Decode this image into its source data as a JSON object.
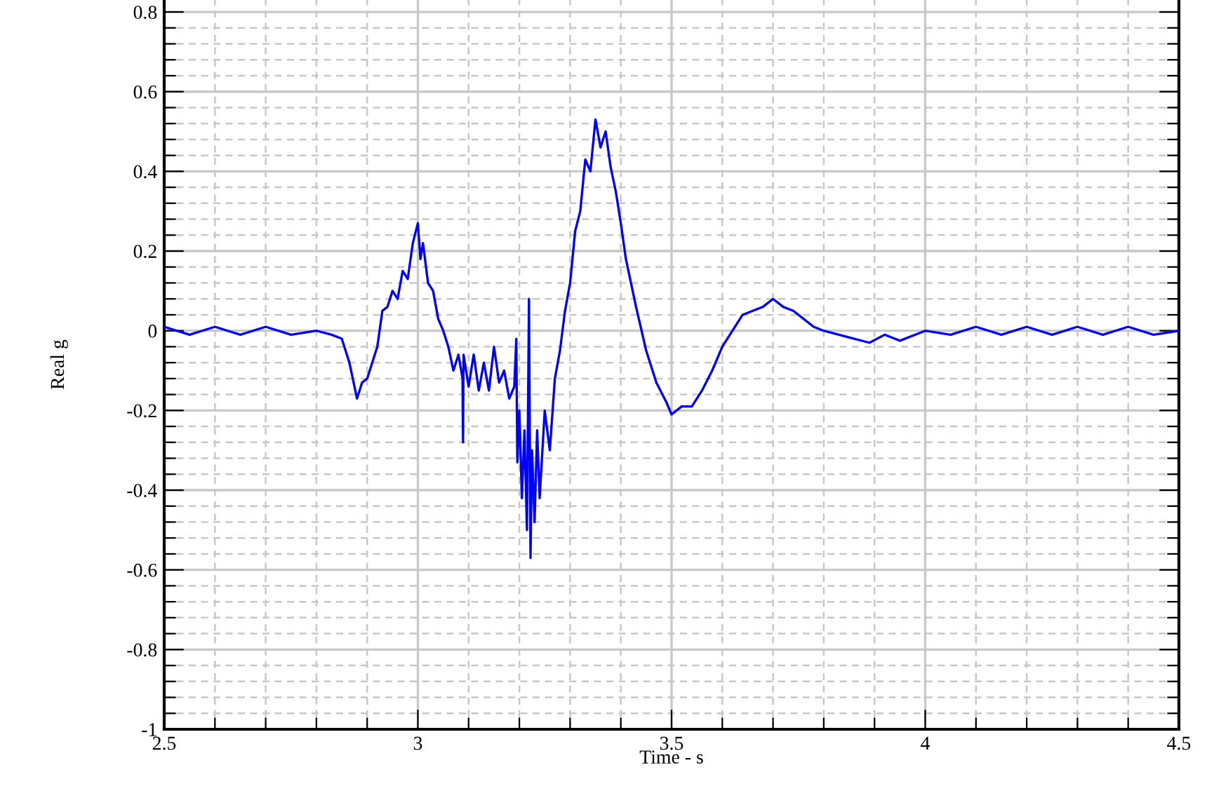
{
  "chart_data": {
    "type": "line",
    "xlabel": "Time - s",
    "ylabel": "Real g",
    "xlim": [
      2.5,
      4.5
    ],
    "ylim": [
      -1,
      0.83
    ],
    "xticks": [
      2.5,
      {
        "value": 2.6,
        "label": null
      },
      {
        "value": 2.7,
        "label": null
      },
      {
        "value": 2.8,
        "label": null
      },
      {
        "value": 2.9,
        "label": null
      },
      3,
      {
        "value": 3.1,
        "label": null
      },
      {
        "value": 3.2,
        "label": null
      },
      {
        "value": 3.3,
        "label": null
      },
      {
        "value": 3.4,
        "label": null
      },
      3.5,
      {
        "value": 3.6,
        "label": null
      },
      {
        "value": 3.7,
        "label": null
      },
      {
        "value": 3.8,
        "label": null
      },
      {
        "value": 3.9,
        "label": null
      },
      4,
      {
        "value": 4.1,
        "label": null
      },
      {
        "value": 4.2,
        "label": null
      },
      {
        "value": 4.3,
        "label": null
      },
      {
        "value": 4.4,
        "label": null
      },
      4.5
    ],
    "yticks": [
      -1,
      {
        "value": -0.96,
        "label": null
      },
      {
        "value": -0.92,
        "label": null
      },
      {
        "value": -0.88,
        "label": null
      },
      {
        "value": -0.84,
        "label": null
      },
      -0.8,
      {
        "value": -0.76,
        "label": null
      },
      {
        "value": -0.72,
        "label": null
      },
      {
        "value": -0.68,
        "label": null
      },
      {
        "value": -0.64,
        "label": null
      },
      -0.6,
      {
        "value": -0.56,
        "label": null
      },
      {
        "value": -0.52,
        "label": null
      },
      {
        "value": -0.48,
        "label": null
      },
      {
        "value": -0.44,
        "label": null
      },
      -0.4,
      {
        "value": -0.36,
        "label": null
      },
      {
        "value": -0.32,
        "label": null
      },
      {
        "value": -0.28,
        "label": null
      },
      {
        "value": -0.24,
        "label": null
      },
      -0.2,
      {
        "value": -0.16,
        "label": null
      },
      {
        "value": -0.12,
        "label": null
      },
      {
        "value": -0.08,
        "label": null
      },
      {
        "value": -0.04,
        "label": null
      },
      0,
      {
        "value": 0.04,
        "label": null
      },
      {
        "value": 0.08,
        "label": null
      },
      {
        "value": 0.12,
        "label": null
      },
      {
        "value": 0.16,
        "label": null
      },
      0.2,
      {
        "value": 0.24,
        "label": null
      },
      {
        "value": 0.28,
        "label": null
      },
      {
        "value": 0.32,
        "label": null
      },
      {
        "value": 0.36,
        "label": null
      },
      0.4,
      {
        "value": 0.44,
        "label": null
      },
      {
        "value": 0.48,
        "label": null
      },
      {
        "value": 0.52,
        "label": null
      },
      {
        "value": 0.56,
        "label": null
      },
      0.6,
      {
        "value": 0.64,
        "label": null
      },
      {
        "value": 0.68,
        "label": null
      },
      {
        "value": 0.72,
        "label": null
      },
      {
        "value": 0.76,
        "label": null
      },
      0.8
    ],
    "grid": true,
    "marker": "none",
    "line_style": "solid",
    "series": [
      {
        "color": "#0000ff",
        "x": [
          2.5,
          2.55,
          2.6,
          2.65,
          2.7,
          2.75,
          2.8,
          2.83,
          2.85,
          2.865,
          2.88,
          2.89,
          2.9,
          2.92,
          2.93,
          2.94,
          2.95,
          2.96,
          2.97,
          2.98,
          2.99,
          3.0,
          3.005,
          3.01,
          3.02,
          3.03,
          3.04,
          3.05,
          3.06,
          3.07,
          3.08,
          3.088,
          3.089,
          3.09,
          3.1,
          3.11,
          3.12,
          3.13,
          3.14,
          3.15,
          3.16,
          3.17,
          3.18,
          3.19,
          3.194,
          3.196,
          3.2,
          3.205,
          3.21,
          3.215,
          3.219,
          3.222,
          3.225,
          3.23,
          3.235,
          3.24,
          3.25,
          3.26,
          3.27,
          3.28,
          3.29,
          3.3,
          3.31,
          3.32,
          3.33,
          3.34,
          3.35,
          3.36,
          3.37,
          3.38,
          3.39,
          3.4,
          3.41,
          3.43,
          3.45,
          3.47,
          3.49,
          3.5,
          3.52,
          3.54,
          3.56,
          3.58,
          3.6,
          3.62,
          3.64,
          3.66,
          3.68,
          3.7,
          3.72,
          3.74,
          3.76,
          3.78,
          3.8,
          3.83,
          3.86,
          3.89,
          3.92,
          3.95,
          4.0,
          4.05,
          4.1,
          4.15,
          4.2,
          4.25,
          4.3,
          4.35,
          4.4,
          4.45,
          4.5
        ],
        "values": [
          0.01,
          -0.01,
          0.01,
          -0.01,
          0.01,
          -0.01,
          0.0,
          -0.01,
          -0.02,
          -0.08,
          -0.17,
          -0.13,
          -0.12,
          -0.04,
          0.05,
          0.06,
          0.1,
          0.08,
          0.15,
          0.13,
          0.22,
          0.27,
          0.18,
          0.22,
          0.12,
          0.1,
          0.03,
          0.0,
          -0.04,
          -0.1,
          -0.06,
          -0.12,
          -0.28,
          -0.06,
          -0.14,
          -0.06,
          -0.15,
          -0.08,
          -0.15,
          -0.04,
          -0.13,
          -0.1,
          -0.17,
          -0.14,
          -0.02,
          -0.33,
          -0.2,
          -0.42,
          -0.25,
          -0.5,
          0.08,
          -0.57,
          -0.3,
          -0.48,
          -0.25,
          -0.42,
          -0.2,
          -0.3,
          -0.12,
          -0.05,
          0.05,
          0.12,
          0.25,
          0.3,
          0.43,
          0.4,
          0.53,
          0.46,
          0.5,
          0.41,
          0.35,
          0.27,
          0.18,
          0.06,
          -0.05,
          -0.13,
          -0.18,
          -0.21,
          -0.19,
          -0.19,
          -0.15,
          -0.1,
          -0.04,
          0.0,
          0.04,
          0.05,
          0.06,
          0.08,
          0.06,
          0.05,
          0.03,
          0.01,
          0.0,
          -0.01,
          -0.02,
          -0.03,
          -0.01,
          -0.025,
          0.0,
          -0.01,
          0.01,
          -0.01,
          0.01,
          -0.01,
          0.01,
          -0.01,
          0.01,
          -0.01,
          0.0
        ]
      }
    ]
  }
}
